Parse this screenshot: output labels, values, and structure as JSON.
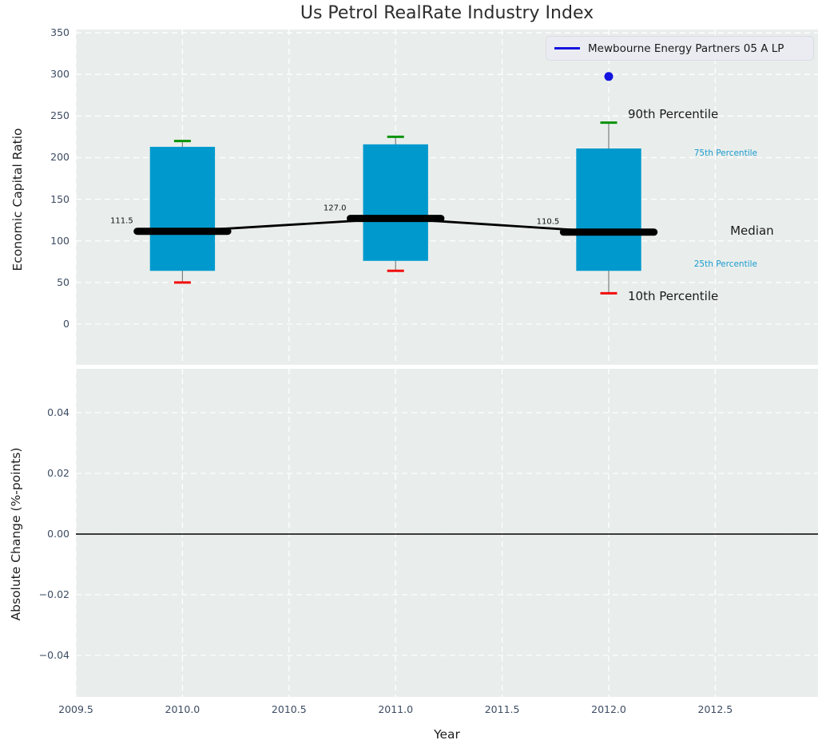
{
  "figure": {
    "background": "#ffffff",
    "axes_background": "#e9eeec",
    "gridline_color": "#ffffff",
    "tick_color": "#3d4c63"
  },
  "chart_data": [
    {
      "type": "boxplot",
      "title": "Us Petrol RealRate Industry Index",
      "ylabel": "Economic Capital Ratio",
      "legend": {
        "label": "Mewbourne Energy Partners 05 A LP",
        "line_color": "#1414e0",
        "position": "upper right"
      },
      "xlim": [
        2009.5,
        2012.982
      ],
      "ylim": [
        -48.9,
        353.9
      ],
      "grid": true,
      "xtick_values": [
        2009.5,
        2010.0,
        2010.5,
        2011.0,
        2011.5,
        2012.0,
        2012.5
      ],
      "xtick_labels_visible": false,
      "yticks": [
        {
          "v": 0,
          "label": "0"
        },
        {
          "v": 50,
          "label": "50"
        },
        {
          "v": 100,
          "label": "100"
        },
        {
          "v": 150,
          "label": "150"
        },
        {
          "v": 200,
          "label": "200"
        },
        {
          "v": 250,
          "label": "250"
        },
        {
          "v": 300,
          "label": "300"
        },
        {
          "v": 350,
          "label": "350"
        }
      ],
      "boxes": [
        {
          "year": 2010,
          "p10": 50,
          "p25": 64,
          "median": 111.5,
          "p75": 213,
          "p90": 220,
          "label": "111.5"
        },
        {
          "year": 2011,
          "p10": 64,
          "p25": 76,
          "median": 127.0,
          "p75": 216,
          "p90": 225,
          "label": "127.0"
        },
        {
          "year": 2012,
          "p10": 37,
          "p25": 64,
          "median": 110.5,
          "p75": 211,
          "p90": 242,
          "label": "110.5"
        }
      ],
      "median_line": {
        "x": [
          2010,
          2011,
          2012
        ],
        "y": [
          111.5,
          127.0,
          110.5
        ],
        "color": "#000000"
      },
      "entity": {
        "name": "Mewbourne Energy Partners 05 A LP",
        "points": [
          {
            "x": 2012,
            "y": 297.5
          }
        ],
        "color": "#1414e0"
      },
      "colors": {
        "box_fill": "#0099cd",
        "whisker": "#7d7d7d",
        "p90_cap": "#0a930a",
        "p10_cap": "#f20d0d",
        "median": "#000000",
        "percentile_text": "#1b9ace",
        "text_dark": "#1a1a1a"
      },
      "annotations": [
        {
          "text": "90th Percentile",
          "x": 2012.09,
          "y": 252,
          "size": 15,
          "color": "#1a1a1a"
        },
        {
          "text": "75th Percentile",
          "x": 2012.4,
          "y": 205,
          "size": 10.5,
          "color": "#1b9ace"
        },
        {
          "text": "Median",
          "x": 2012.57,
          "y": 112,
          "size": 15,
          "color": "#1a1a1a"
        },
        {
          "text": "25th Percentile",
          "x": 2012.4,
          "y": 72,
          "size": 10.5,
          "color": "#1b9ace"
        },
        {
          "text": "10th Percentile",
          "x": 2012.09,
          "y": 34,
          "size": 15,
          "color": "#1a1a1a"
        }
      ]
    },
    {
      "type": "line",
      "ylabel": "Absolute Change (%-points)",
      "xlabel": "Year",
      "xlim": [
        2009.5,
        2012.982
      ],
      "ylim": [
        -0.05368,
        0.05447
      ],
      "grid": true,
      "zero_line": 0.0,
      "zero_line_color": "#000000",
      "xticks": [
        {
          "v": 2009.5,
          "label": "2009.5"
        },
        {
          "v": 2010.0,
          "label": "2010.0"
        },
        {
          "v": 2010.5,
          "label": "2010.5"
        },
        {
          "v": 2011.0,
          "label": "2011.0"
        },
        {
          "v": 2011.5,
          "label": "2011.5"
        },
        {
          "v": 2012.0,
          "label": "2012.0"
        },
        {
          "v": 2012.5,
          "label": "2012.5"
        }
      ],
      "yticks": [
        {
          "v": 0.04,
          "label": "0.04"
        },
        {
          "v": 0.02,
          "label": "0.02"
        },
        {
          "v": 0.0,
          "label": "0.00"
        },
        {
          "v": -0.02,
          "label": "−0.02"
        },
        {
          "v": -0.04,
          "label": "−0.04"
        }
      ]
    }
  ]
}
